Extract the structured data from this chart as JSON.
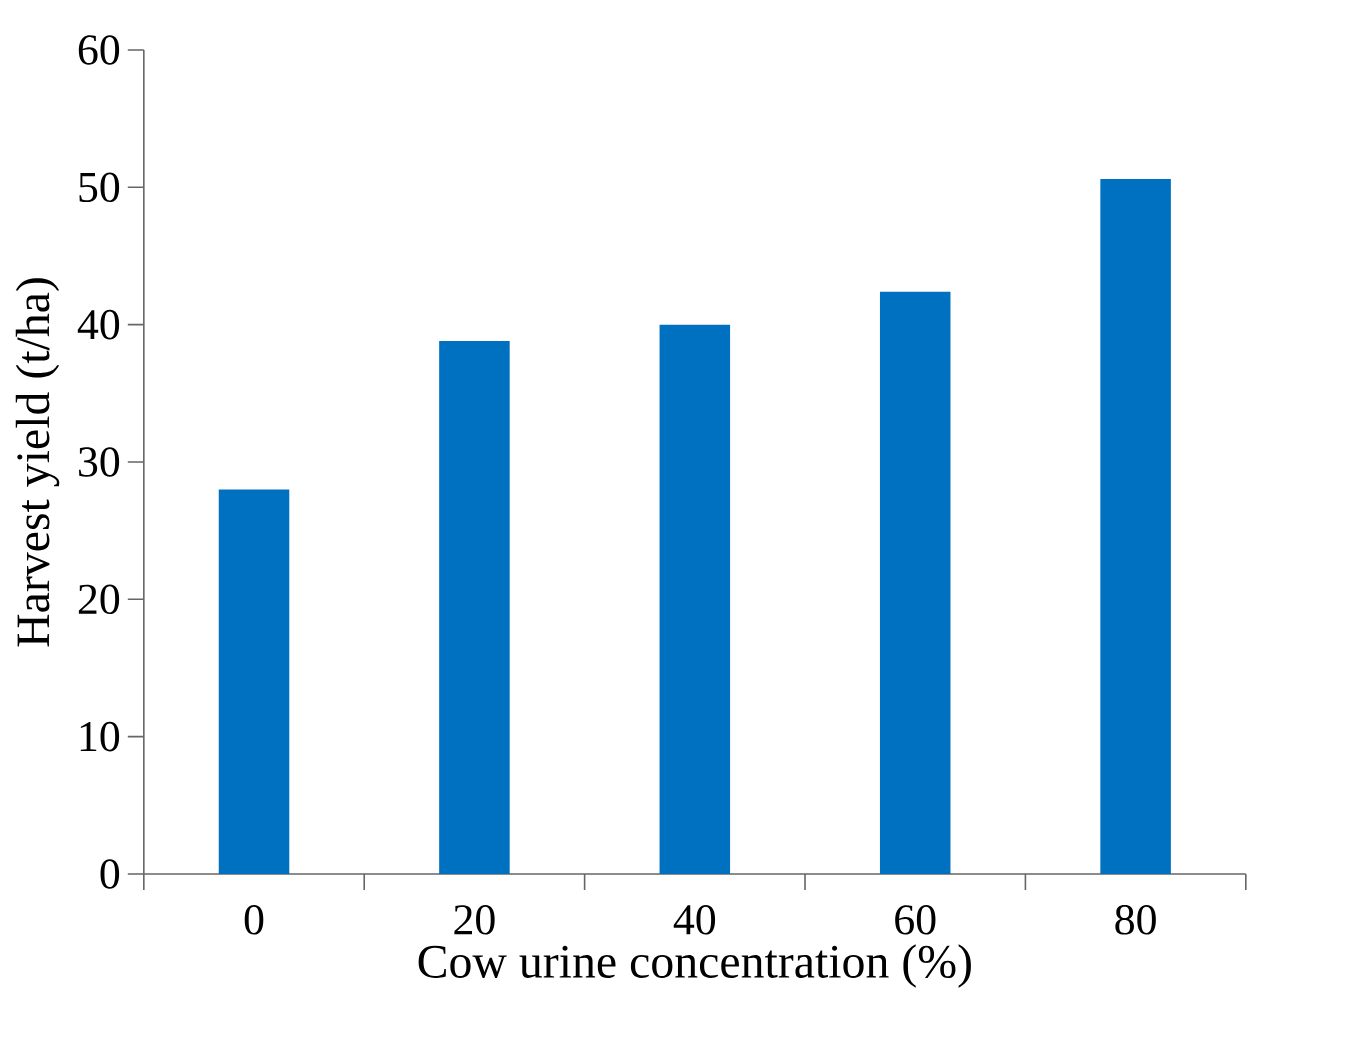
{
  "chart_data": {
    "type": "bar",
    "xlabel": "Cow urine concentration (%)",
    "ylabel": "Harvest yield (t/ha)",
    "categories": [
      "0",
      "20",
      "40",
      "60",
      "80"
    ],
    "values": [
      28,
      38.8,
      40,
      42.4,
      50.6
    ],
    "color": "#0070c0",
    "ylim": [
      0,
      60
    ],
    "yticks": [
      0,
      10,
      20,
      30,
      40,
      50,
      60
    ]
  }
}
